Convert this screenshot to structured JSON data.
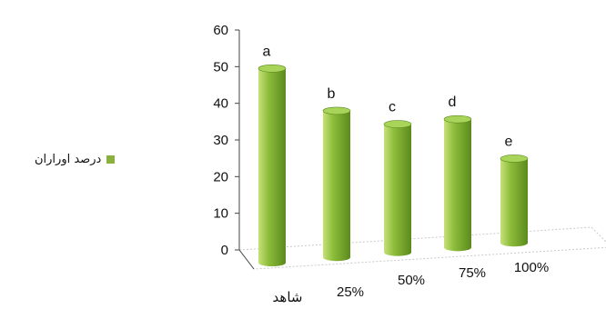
{
  "chart_data": {
    "type": "bar",
    "title": "",
    "xlabel": "",
    "ylabel": "",
    "categories": [
      "شاهد",
      "25%",
      "50%",
      "75%",
      "100%"
    ],
    "series": [
      {
        "name": "درصد اوراران",
        "values": [
          53,
          40,
          35,
          35,
          23
        ],
        "labels": [
          "a",
          "b",
          "c",
          "d",
          "e"
        ]
      }
    ],
    "ylim": [
      0,
      60
    ],
    "yticks": [
      0,
      10,
      20,
      30,
      40,
      50,
      60
    ],
    "grid": false,
    "legend": "left"
  },
  "colors": {
    "bar_light": "#c6e27a",
    "bar_mid": "#8fbe3c",
    "bar_dark": "#5a8a1c",
    "bar_top": "#a9d45a",
    "legend_swatch": "#8ab13c"
  }
}
